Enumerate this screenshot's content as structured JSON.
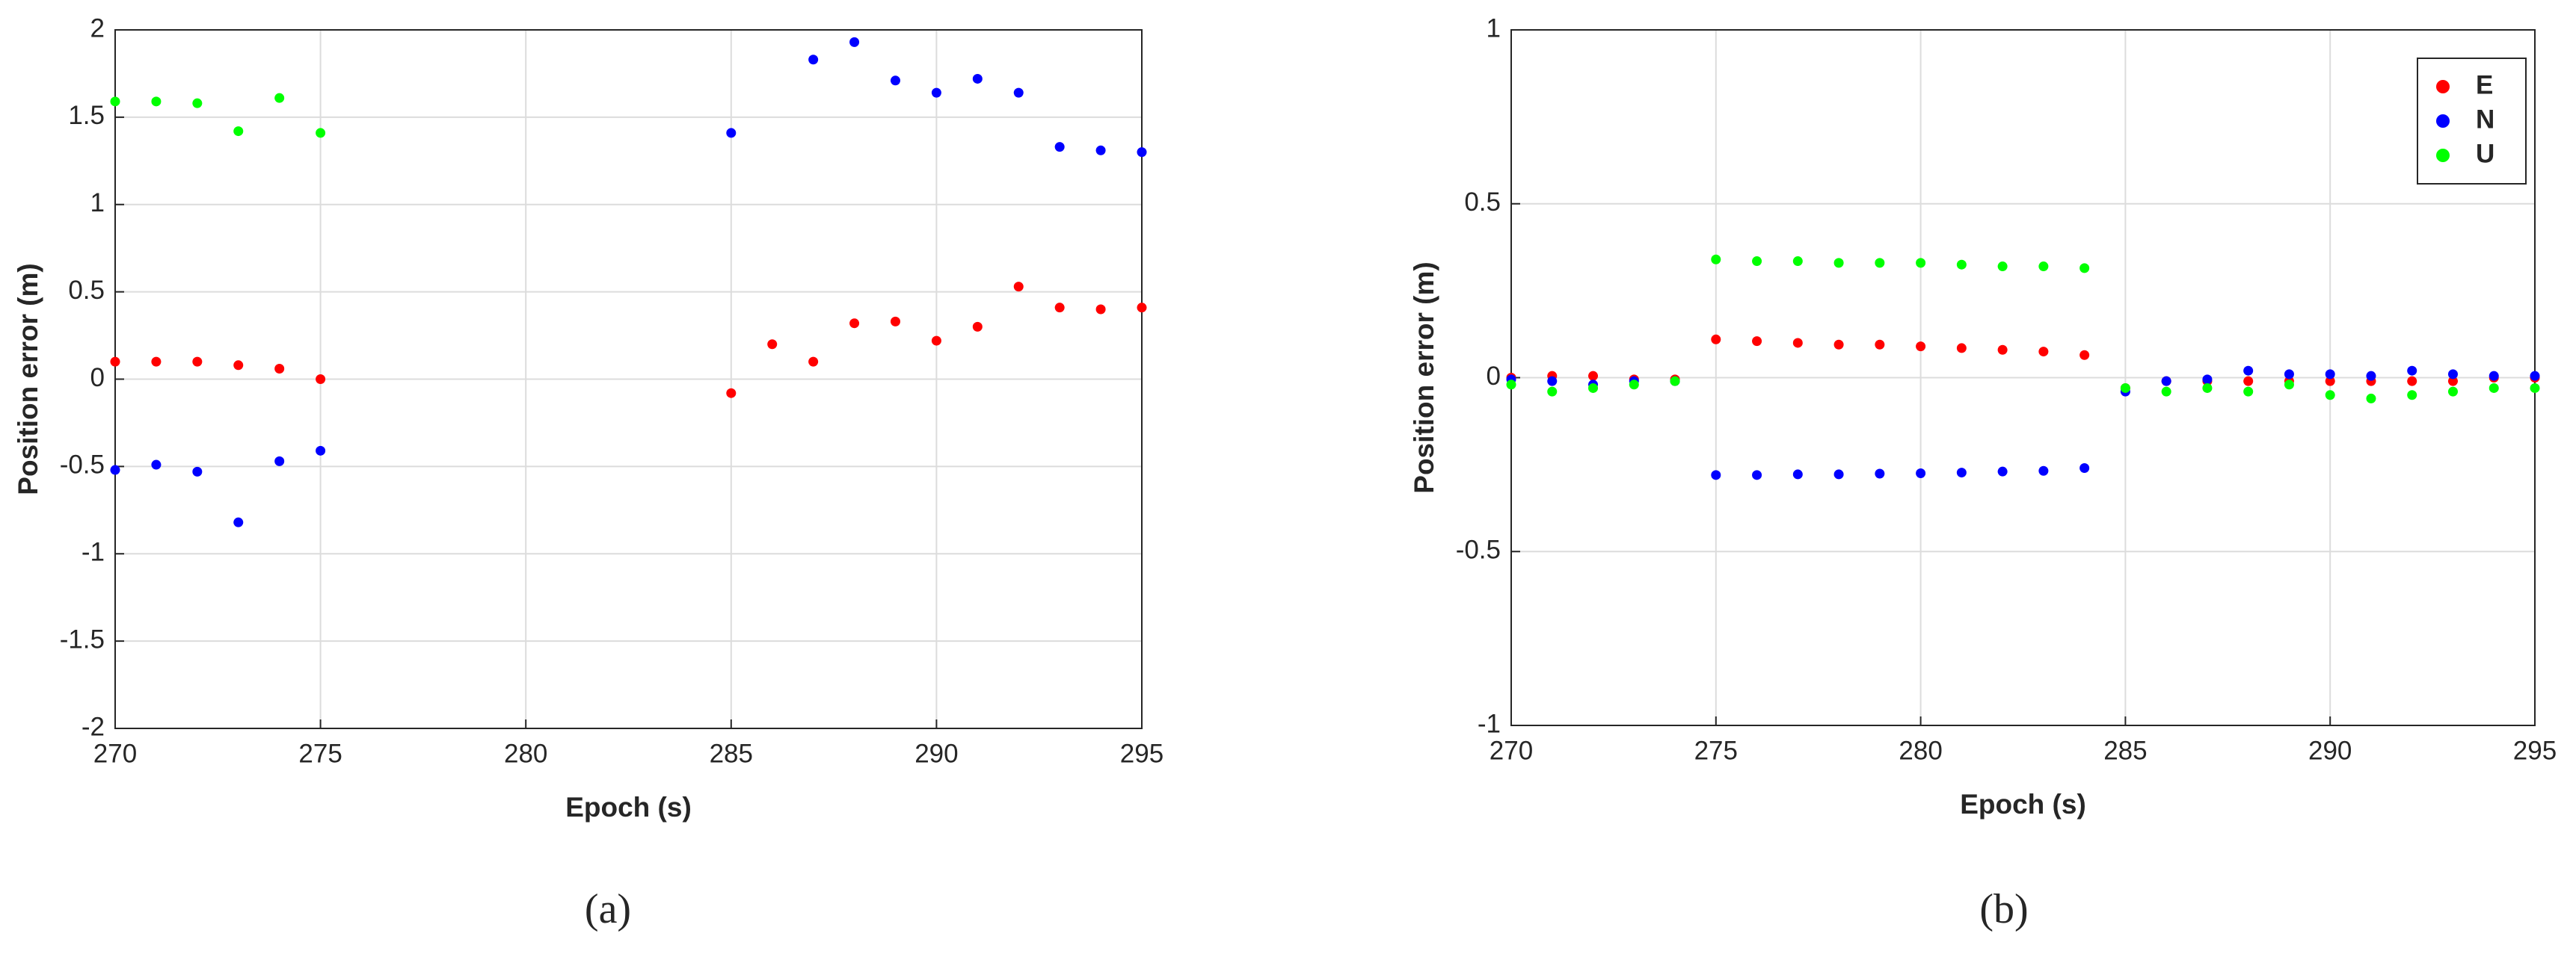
{
  "chart_data": [
    {
      "type": "scatter",
      "caption": "(a)",
      "x_label": "Epoch (s)",
      "y_label": "Position error (m)",
      "x": [
        270,
        271,
        272,
        273,
        274,
        275,
        276,
        277,
        278,
        279,
        280,
        281,
        282,
        283,
        284,
        285,
        286,
        287,
        288,
        289,
        290,
        291,
        292,
        293,
        294,
        295
      ],
      "xlim": [
        270,
        295
      ],
      "xticks": [
        270,
        275,
        280,
        285,
        290,
        295
      ],
      "ylim": [
        -2,
        2
      ],
      "yticks": [
        -2,
        -1.5,
        -1,
        -0.5,
        0,
        0.5,
        1,
        1.5,
        2
      ],
      "grid": true,
      "series": [
        {
          "color": "#ff0000",
          "values": [
            0.1,
            0.1,
            0.1,
            0.08,
            0.06,
            0.0,
            null,
            null,
            null,
            null,
            null,
            null,
            null,
            null,
            null,
            -0.08,
            0.2,
            0.1,
            0.32,
            0.33,
            0.22,
            0.3,
            0.53,
            0.41,
            0.4,
            0.41
          ]
        },
        {
          "color": "#0000ff",
          "values": [
            -0.52,
            -0.49,
            -0.53,
            -0.82,
            -0.47,
            -0.41,
            null,
            null,
            null,
            null,
            null,
            null,
            null,
            null,
            null,
            1.41,
            null,
            1.83,
            1.93,
            1.71,
            1.64,
            1.72,
            1.64,
            1.33,
            1.31,
            1.3
          ]
        },
        {
          "color": "#00ff00",
          "values": [
            1.59,
            1.59,
            1.58,
            1.42,
            1.61,
            1.41,
            null,
            null,
            null,
            null,
            null,
            null,
            null,
            null,
            null,
            null,
            null,
            null,
            null,
            null,
            null,
            null,
            null,
            null,
            null,
            null
          ]
        }
      ]
    },
    {
      "type": "scatter",
      "caption": "(b)",
      "x_label": "Epoch (s)",
      "y_label": "Position error (m)",
      "x": [
        270,
        271,
        272,
        273,
        274,
        275,
        276,
        277,
        278,
        279,
        280,
        281,
        282,
        283,
        284,
        285,
        286,
        287,
        288,
        289,
        290,
        291,
        292,
        293,
        294,
        295
      ],
      "xlim": [
        270,
        295
      ],
      "xticks": [
        270,
        275,
        280,
        285,
        290,
        295
      ],
      "ylim": [
        -1,
        1
      ],
      "yticks": [
        -1,
        -0.5,
        0,
        0.5,
        1
      ],
      "grid": true,
      "legend": "upper right",
      "series": [
        {
          "name": "E",
          "color": "#ff0000",
          "values": [
            0,
            0.005,
            0.005,
            -0.005,
            -0.005,
            0.11,
            0.105,
            0.1,
            0.095,
            0.095,
            0.09,
            0.085,
            0.08,
            0.075,
            0.065,
            -0.03,
            -0.01,
            -0.01,
            -0.01,
            -0.01,
            -0.01,
            -0.01,
            -0.01,
            -0.01,
            0,
            0
          ]
        },
        {
          "name": "N",
          "color": "#0000ff",
          "values": [
            -0.005,
            -0.01,
            -0.02,
            -0.01,
            -0.01,
            -0.28,
            -0.28,
            -0.278,
            -0.278,
            -0.276,
            -0.275,
            -0.273,
            -0.27,
            -0.268,
            -0.26,
            -0.04,
            -0.01,
            -0.005,
            0.02,
            0.01,
            0.01,
            0.005,
            0.02,
            0.01,
            0.005,
            0.005
          ]
        },
        {
          "name": "U",
          "color": "#00ff00",
          "values": [
            -0.02,
            -0.04,
            -0.03,
            -0.02,
            -0.01,
            0.34,
            0.335,
            0.335,
            0.33,
            0.33,
            0.33,
            0.325,
            0.32,
            0.32,
            0.315,
            -0.03,
            -0.04,
            -0.03,
            -0.04,
            -0.02,
            -0.05,
            -0.06,
            -0.05,
            -0.04,
            -0.03,
            -0.03
          ]
        }
      ]
    }
  ]
}
